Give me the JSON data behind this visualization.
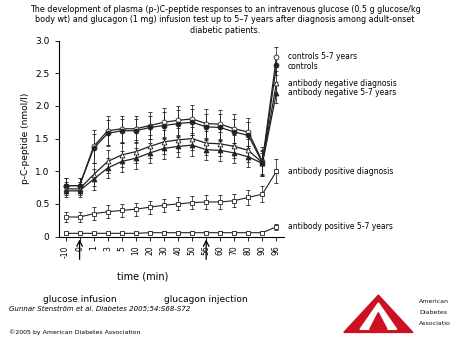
{
  "title": "The development of plasma (p-)C-peptide responses to an intravenous glucose (0.5 g glucose/kg\nbody wt) and glucagon (1 mg) infusion test up to 5–7 years after diagnosis among adult-onset\ndiabetic patients.",
  "ylabel": "p-C-peptide (nmol/l)",
  "xlabel": "time (min)",
  "annotation_glucose": "glucose infusion",
  "annotation_glucagon": "glucagon injection",
  "citation": "Gunnar Stenström et al. Diabetes 2005;54:S68-S72",
  "copyright": "©2005 by American Diabetes Association",
  "time_points": [
    -10,
    0,
    1,
    3,
    5,
    10,
    20,
    30,
    40,
    50,
    56,
    60,
    70,
    80,
    90,
    96
  ],
  "series": {
    "controls_5_7": {
      "label": "controls 5-7 years",
      "marker": "o",
      "fillstyle": "none",
      "values": [
        0.78,
        0.78,
        1.38,
        1.62,
        1.65,
        1.65,
        1.7,
        1.75,
        1.78,
        1.8,
        1.73,
        1.72,
        1.65,
        1.6,
        1.15,
        2.75
      ],
      "errors": [
        0.12,
        0.12,
        0.25,
        0.22,
        0.2,
        0.2,
        0.2,
        0.22,
        0.22,
        0.22,
        0.22,
        0.22,
        0.22,
        0.22,
        0.22,
        0.15
      ]
    },
    "controls": {
      "label": "controls",
      "marker": "o",
      "fillstyle": "full",
      "values": [
        0.78,
        0.78,
        1.35,
        1.58,
        1.62,
        1.62,
        1.67,
        1.7,
        1.73,
        1.75,
        1.68,
        1.67,
        1.6,
        1.55,
        1.13,
        2.62
      ],
      "errors": [
        0.12,
        0.12,
        0.22,
        0.2,
        0.18,
        0.18,
        0.18,
        0.2,
        0.2,
        0.2,
        0.2,
        0.2,
        0.2,
        0.2,
        0.2,
        0.15
      ]
    },
    "ab_neg_diagnosis": {
      "label": "antibody negative diagnosis",
      "marker": "^",
      "fillstyle": "none",
      "values": [
        0.73,
        0.73,
        0.95,
        1.15,
        1.25,
        1.3,
        1.38,
        1.45,
        1.48,
        1.5,
        1.43,
        1.42,
        1.38,
        1.32,
        1.13,
        2.35
      ],
      "errors": [
        0.1,
        0.1,
        0.18,
        0.18,
        0.18,
        0.18,
        0.18,
        0.18,
        0.18,
        0.18,
        0.18,
        0.18,
        0.18,
        0.18,
        0.18,
        0.18
      ]
    },
    "ab_neg_5_7": {
      "label": "antibody negative 5-7 years",
      "marker": "^",
      "fillstyle": "full",
      "values": [
        0.7,
        0.7,
        0.88,
        1.05,
        1.15,
        1.2,
        1.28,
        1.35,
        1.38,
        1.4,
        1.33,
        1.32,
        1.28,
        1.22,
        1.12,
        2.2
      ],
      "errors": [
        0.1,
        0.1,
        0.16,
        0.16,
        0.16,
        0.16,
        0.16,
        0.16,
        0.16,
        0.16,
        0.16,
        0.16,
        0.16,
        0.16,
        0.16,
        0.16
      ]
    },
    "ab_pos_diagnosis": {
      "label": "antibody positive diagnosis",
      "marker": "s",
      "fillstyle": "none",
      "values": [
        0.3,
        0.3,
        0.35,
        0.38,
        0.4,
        0.42,
        0.45,
        0.48,
        0.5,
        0.52,
        0.53,
        0.53,
        0.55,
        0.6,
        0.65,
        1.0
      ],
      "errors": [
        0.08,
        0.08,
        0.1,
        0.1,
        0.1,
        0.1,
        0.1,
        0.1,
        0.1,
        0.1,
        0.1,
        0.1,
        0.1,
        0.12,
        0.12,
        0.18
      ]
    },
    "ab_pos_5_7": {
      "label": "antibody positive 5-7 years",
      "marker": "s",
      "fillstyle": "none",
      "values": [
        0.05,
        0.05,
        0.05,
        0.05,
        0.05,
        0.05,
        0.06,
        0.06,
        0.06,
        0.06,
        0.06,
        0.06,
        0.06,
        0.06,
        0.06,
        0.15
      ],
      "errors": [
        0.02,
        0.02,
        0.02,
        0.02,
        0.02,
        0.02,
        0.02,
        0.02,
        0.02,
        0.02,
        0.02,
        0.02,
        0.02,
        0.02,
        0.02,
        0.05
      ]
    }
  },
  "ylim": [
    0,
    3.0
  ],
  "yticks": [
    0,
    0.5,
    1.0,
    1.5,
    2.0,
    2.5,
    3.0
  ],
  "glucose_idx": 1,
  "glucagon_idx": 10,
  "legend_items": [
    {
      "label": "controls 5-7 years",
      "yval": 2.76,
      "marker": "o",
      "filled": false
    },
    {
      "label": "controls",
      "yval": 2.6,
      "marker": "o",
      "filled": true
    },
    {
      "label": "antibody negative diagnosis",
      "yval": 2.35,
      "marker": "^",
      "filled": false
    },
    {
      "label": "antibody negative 5-7 years",
      "yval": 2.2,
      "marker": "^",
      "filled": true
    },
    {
      "label": "antibody positive diagnosis",
      "yval": 1.0,
      "marker": "s",
      "filled": false
    },
    {
      "label": "antibody positive 5-7 years",
      "yval": 0.15,
      "marker": "s",
      "filled": false
    }
  ]
}
